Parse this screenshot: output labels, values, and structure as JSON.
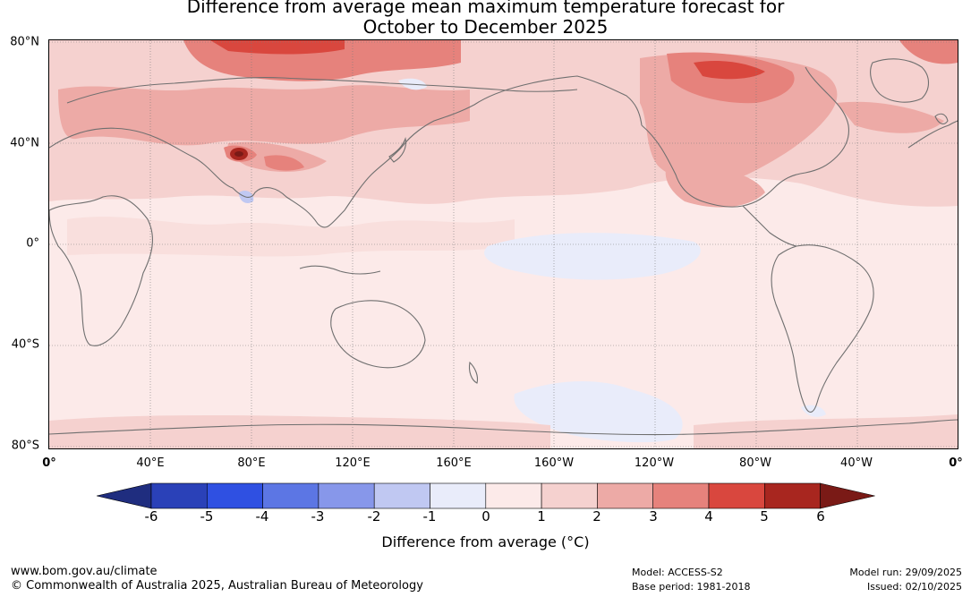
{
  "title": {
    "line1": "Difference from average mean maximum temperature forecast for",
    "line2": "October to December 2025"
  },
  "map": {
    "lat_labels": [
      "80°N",
      "40°N",
      "0°",
      "40°S",
      "80°S"
    ],
    "lon_labels": [
      "0°",
      "40°E",
      "80°E",
      "120°E",
      "160°E",
      "160°W",
      "120°W",
      "80°W",
      "40°W",
      "0°"
    ],
    "background_color": "#fceae9",
    "coastline_color": "#6f6f6f",
    "gridline_color": "#7a7a7a"
  },
  "legend": {
    "ticks": [
      "-6",
      "-5",
      "-4",
      "-3",
      "-2",
      "-1",
      "0",
      "1",
      "2",
      "3",
      "4",
      "5",
      "6"
    ],
    "label": "Difference from average (°C)",
    "colors": [
      "#1f2d7f",
      "#2a41b8",
      "#2f50e2",
      "#5c76e4",
      "#8797ea",
      "#c0c8f2",
      "#e9ecfa",
      "#fceae9",
      "#f5d1cf",
      "#edaaa6",
      "#e6827c",
      "#d9473e",
      "#a8261f",
      "#7a1a16"
    ]
  },
  "footer": {
    "website": "www.bom.gov.au/climate",
    "copyright": "© Commonwealth of Australia 2025, Australian Bureau of Meteorology",
    "model": "Model: ACCESS-S2",
    "base_period": "Base period: 1981-2018",
    "model_run": "Model run: 29/09/2025",
    "issued": "Issued: 02/10/2025"
  }
}
